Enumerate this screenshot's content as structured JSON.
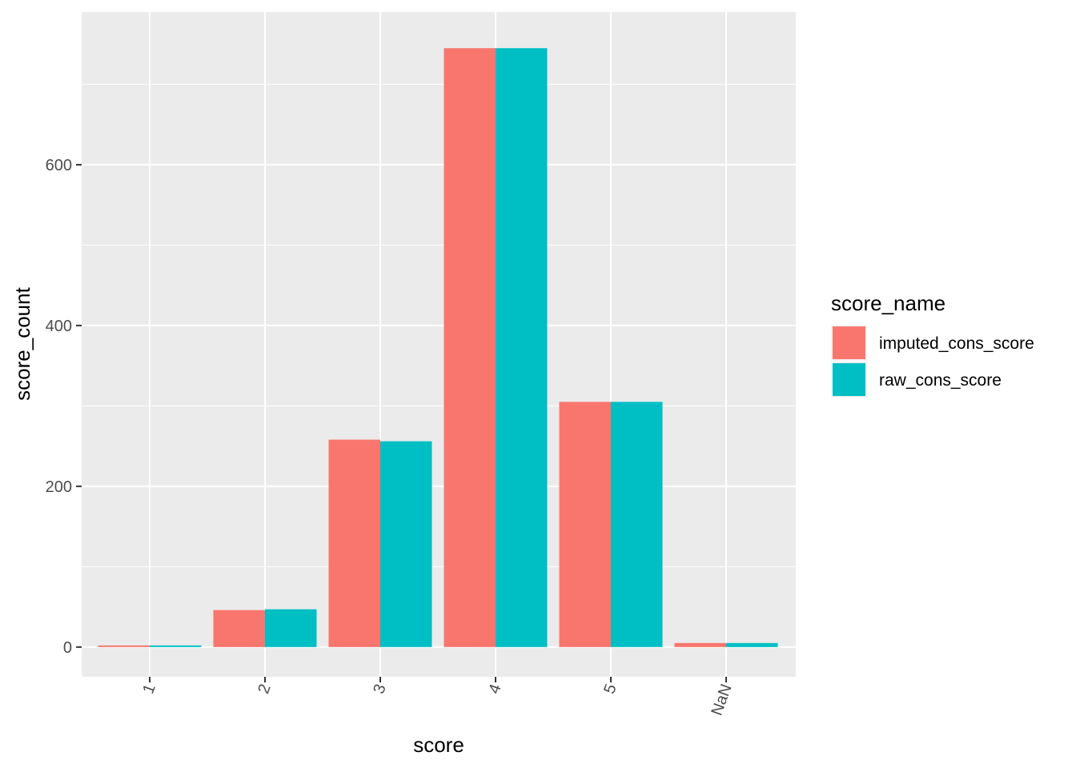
{
  "chart_data": {
    "type": "bar",
    "xlabel": "score",
    "ylabel": "score_count",
    "categories": [
      "1",
      "2",
      "3",
      "4",
      "5",
      "NaN"
    ],
    "series": [
      {
        "name": "imputed_cons_score",
        "color": "#F8766D",
        "values": [
          2,
          46,
          258,
          745,
          305,
          5
        ]
      },
      {
        "name": "raw_cons_score",
        "color": "#00BFC4",
        "values": [
          2,
          47,
          256,
          745,
          305,
          5
        ]
      }
    ],
    "ylim": [
      -37,
      790
    ],
    "y_ticks": [
      0,
      200,
      400,
      600
    ],
    "y_tick_labels": [
      "0",
      "200",
      "400",
      "600"
    ],
    "grid": true,
    "legend": {
      "title": "score_name",
      "position": "right"
    }
  }
}
